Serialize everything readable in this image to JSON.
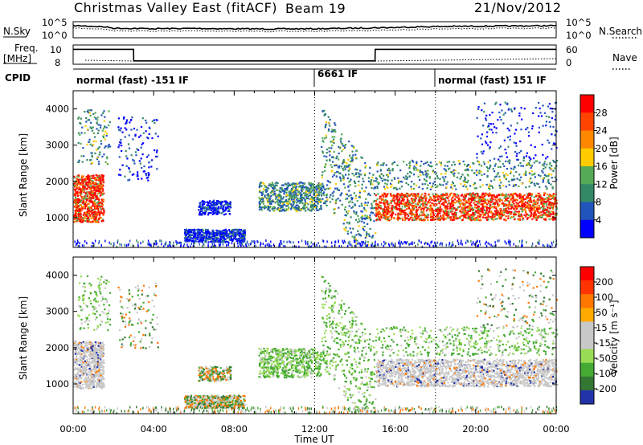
{
  "header": {
    "title": "Christmas Valley East (fitACF)",
    "beam": "Beam 19",
    "date": "21/Nov/2012"
  },
  "chart_data": [
    {
      "type": "line",
      "name": "noise-panel",
      "left_label": "N.Sky",
      "right_label": "N.Search",
      "left_ticks": [
        "10^5",
        "10^0"
      ],
      "right_ticks": [
        "10^5",
        "10^0"
      ],
      "x": [
        0,
        2,
        4,
        6,
        8,
        10,
        12,
        14,
        16,
        18,
        20,
        22,
        24
      ],
      "series": [
        {
          "values": [
            20000,
            1500,
            900,
            1200,
            800,
            700,
            800,
            1500,
            3000,
            8000,
            12000,
            15000,
            20000
          ]
        }
      ]
    },
    {
      "type": "line",
      "name": "freq-panel",
      "left_label": "Freq. [MHz]",
      "right_label": "Nave",
      "left_ticks": [
        "10",
        "8"
      ],
      "right_ticks": [
        "60",
        "0"
      ],
      "x": [
        0,
        3,
        3.01,
        15,
        15.01,
        24
      ],
      "series": [
        {
          "values": [
            10.2,
            10.2,
            8.4,
            8.4,
            10.2,
            10.2
          ]
        }
      ]
    },
    {
      "type": "table",
      "name": "cpid",
      "label": "CPID",
      "segments": [
        {
          "text": "normal (fast) -151 IF",
          "start": 0,
          "end": 12
        },
        {
          "text": "6661 IF",
          "start": 12,
          "end": 18
        },
        {
          "text": "normal (fast) 151 IF",
          "start": 18,
          "end": 24
        }
      ]
    },
    {
      "type": "heatmap",
      "name": "power",
      "ylabel": "Slant Range [km]",
      "yticks": [
        1000,
        2000,
        3000,
        4000
      ],
      "ylim": [
        180,
        4500
      ],
      "colorbar_label": "Power [dB]",
      "colorbar_ticks": [
        "28",
        "24",
        "20",
        "16",
        "12",
        "8",
        "4"
      ],
      "colors": [
        "#0000ff",
        "#2255bb",
        "#338866",
        "#55aa55",
        "#ffcc00",
        "#ff8800",
        "#ff4400",
        "#ff0000"
      ]
    },
    {
      "type": "heatmap",
      "name": "velocity",
      "ylabel": "Slant Range [km]",
      "yticks": [
        1000,
        2000,
        3000,
        4000
      ],
      "ylim": [
        180,
        4500
      ],
      "colorbar_label": "Velocity [m s⁻¹]",
      "colorbar_ticks": [
        "200",
        "100",
        "50",
        "15",
        "-15",
        "-50",
        "-100",
        "-200"
      ],
      "colors": [
        "#2233aa",
        "#337733",
        "#44aa33",
        "#99dd55",
        "#c8c8c8",
        "#c8c8c8",
        "#ffaa00",
        "#ff7700",
        "#ff3300",
        "#ff0000"
      ],
      "xlabel": "Time UT",
      "xticks": [
        "00:00",
        "04:00",
        "08:00",
        "12:00",
        "16:00",
        "20:00",
        "00:00"
      ]
    }
  ]
}
